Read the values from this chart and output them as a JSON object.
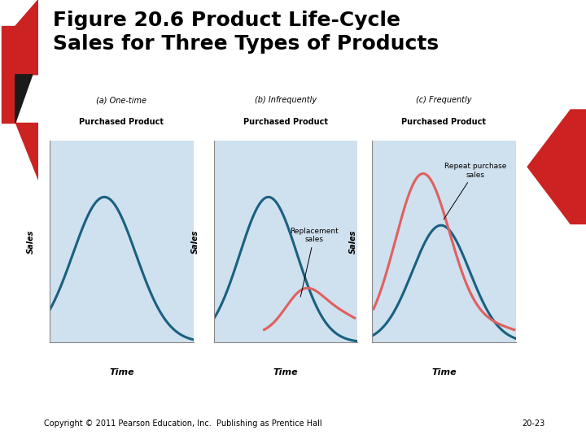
{
  "title": "Figure 20.6 Product Life-Cycle\nSales for Three Types of Products",
  "title_fontsize": 18,
  "bg_color": "#ffffff",
  "panel_bg": "#cfe0ee",
  "panel_titles": [
    "(a) One-time\nPurchased Product",
    "(b) Infrequently\nPurchased Product",
    "(c) Frequently\nPurchased Product"
  ],
  "xlabel": "Time",
  "ylabel": "Sales",
  "blue_color": "#1a6080",
  "red_color": "#e06060",
  "copyright": "Copyright © 2011 Pearson Education, Inc.  Publishing as Prentice Hall",
  "page_num": "20-23",
  "left_black": "#1a1a1a",
  "right_black": "#111111",
  "red_accent": "#cc2222",
  "annot_b": "Replacement\nsales",
  "annot_c": "Repeat purchase\nsales"
}
